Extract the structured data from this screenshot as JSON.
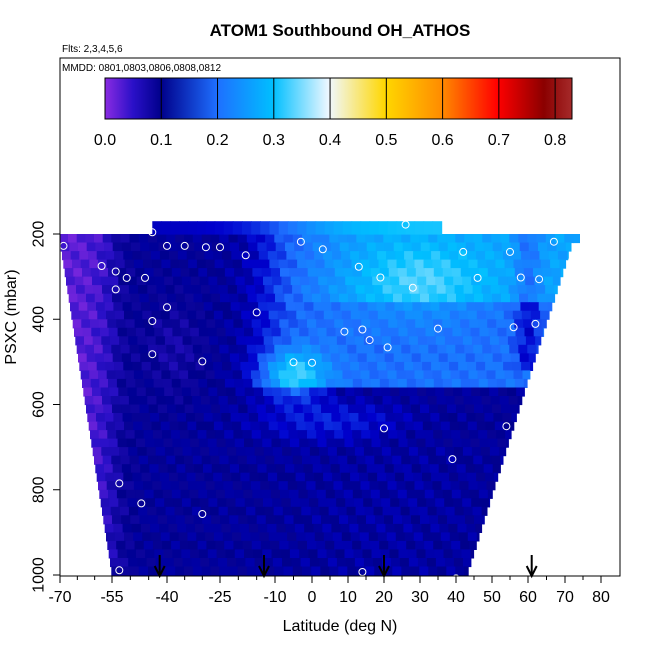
{
  "chart_data": {
    "type": "heatmap",
    "title": "ATOM1 Southbound OH_ATHOS",
    "subtitle_flights": "Flts: 2,3,4,5,6",
    "subtitle_dates": "MMDD: 0801,0803,0806,0808,0812",
    "xlabel": "Latitude (deg N)",
    "ylabel": "PSXC (mbar)",
    "xlim": [
      -70,
      80
    ],
    "ylim": [
      1020,
      200
    ],
    "x_ticks": [
      -70,
      -55,
      -40,
      -25,
      -10,
      0,
      10,
      20,
      30,
      40,
      50,
      60,
      70,
      80
    ],
    "x_tick_labels": [
      "-70",
      "-55",
      "-40",
      "-25",
      "-10",
      "0",
      "10",
      "20",
      "30",
      "40",
      "50",
      "60",
      "70",
      "80"
    ],
    "y_ticks": [
      200,
      400,
      600,
      800,
      1000
    ],
    "y_tick_labels": [
      "200",
      "400",
      "600",
      "800",
      "1000"
    ],
    "colorbar": {
      "range": [
        0.0,
        0.83
      ],
      "ticks": [
        0.0,
        0.1,
        0.2,
        0.3,
        0.4,
        0.5,
        0.6,
        0.7,
        0.8
      ],
      "tick_labels": [
        "0.0",
        "0.1",
        "0.2",
        "0.3",
        "0.4",
        "0.5",
        "0.6",
        "0.7",
        "0.8"
      ],
      "colors": [
        "#8a2be2",
        "#00008b",
        "#0000cd",
        "#1e90ff",
        "#00bfff",
        "#ffffff",
        "#ffd700",
        "#ff8c00",
        "#ff0000",
        "#8b0000",
        "#a52a2a"
      ]
    },
    "arrows_latitude": [
      -42,
      -13,
      20,
      61
    ],
    "observation_points": [
      {
        "lat": -44,
        "p": 196
      },
      {
        "lat": -69,
        "p": 228
      },
      {
        "lat": -40,
        "p": 228
      },
      {
        "lat": -35,
        "p": 228
      },
      {
        "lat": -29,
        "p": 231
      },
      {
        "lat": -25,
        "p": 231
      },
      {
        "lat": -18,
        "p": 250
      },
      {
        "lat": -3,
        "p": 218
      },
      {
        "lat": 3,
        "p": 236
      },
      {
        "lat": 26,
        "p": 178
      },
      {
        "lat": 42,
        "p": 242
      },
      {
        "lat": 55,
        "p": 242
      },
      {
        "lat": 67,
        "p": 218
      },
      {
        "lat": 72,
        "p": 262
      },
      {
        "lat": -58,
        "p": 275
      },
      {
        "lat": -54,
        "p": 288
      },
      {
        "lat": -51,
        "p": 303
      },
      {
        "lat": -46,
        "p": 303
      },
      {
        "lat": -54,
        "p": 330
      },
      {
        "lat": 13,
        "p": 277
      },
      {
        "lat": 19,
        "p": 302
      },
      {
        "lat": 28,
        "p": 326
      },
      {
        "lat": 46,
        "p": 303
      },
      {
        "lat": 58,
        "p": 302
      },
      {
        "lat": 63,
        "p": 306
      },
      {
        "lat": -40,
        "p": 372
      },
      {
        "lat": -44,
        "p": 404
      },
      {
        "lat": -15,
        "p": 384
      },
      {
        "lat": 9,
        "p": 429
      },
      {
        "lat": 14,
        "p": 424
      },
      {
        "lat": 16,
        "p": 449
      },
      {
        "lat": 21,
        "p": 466
      },
      {
        "lat": 35,
        "p": 422
      },
      {
        "lat": 56,
        "p": 419
      },
      {
        "lat": 62,
        "p": 411
      },
      {
        "lat": -44,
        "p": 482
      },
      {
        "lat": -30,
        "p": 499
      },
      {
        "lat": -5,
        "p": 501
      },
      {
        "lat": 0,
        "p": 502
      },
      {
        "lat": 20,
        "p": 656
      },
      {
        "lat": 54,
        "p": 651
      },
      {
        "lat": 71,
        "p": 623
      },
      {
        "lat": 39,
        "p": 728
      },
      {
        "lat": -53,
        "p": 785
      },
      {
        "lat": -47,
        "p": 832
      },
      {
        "lat": -30,
        "p": 857
      },
      {
        "lat": -53,
        "p": 989
      },
      {
        "lat": 14,
        "p": 993
      },
      {
        "lat": 40,
        "p": 1008
      }
    ]
  }
}
